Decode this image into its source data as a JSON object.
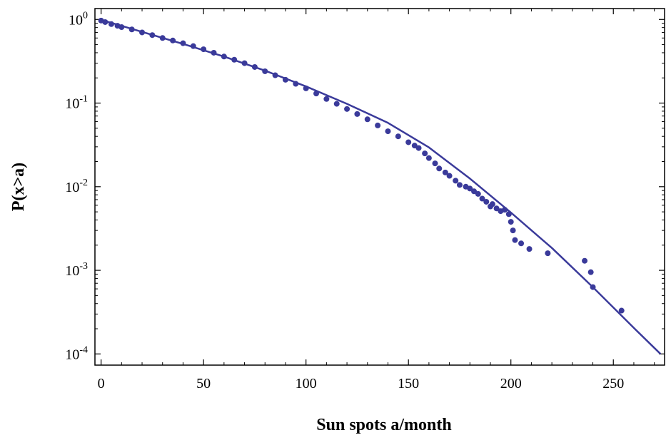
{
  "chart_data": {
    "type": "scatter",
    "title": "",
    "xlabel": "Sun spots a/month",
    "ylabel": "P(x>a)",
    "xlim": [
      -3,
      275
    ],
    "ylim": [
      7.35e-05,
      1.35
    ],
    "yscale": "log",
    "grid": false,
    "legend": "none",
    "x_ticks": [
      0,
      50,
      100,
      150,
      200,
      250
    ],
    "x_tick_labels": [
      "0",
      "50",
      "100",
      "150",
      "200",
      "250"
    ],
    "y_ticks": [
      1,
      0.1,
      0.01,
      0.001,
      0.0001
    ],
    "y_tick_labels": [
      {
        "base": "10",
        "exp": "0"
      },
      {
        "base": "10",
        "exp": "-1"
      },
      {
        "base": "10",
        "exp": "-2"
      },
      {
        "base": "10",
        "exp": "-3"
      },
      {
        "base": "10",
        "exp": "-4"
      }
    ],
    "series": [
      {
        "kind": "points",
        "color": "#3a3a9a",
        "x": [
          0,
          2,
          5,
          8,
          10,
          15,
          20,
          25,
          30,
          35,
          40,
          45,
          50,
          55,
          60,
          65,
          70,
          75,
          80,
          85,
          90,
          95,
          100,
          105,
          110,
          115,
          120,
          125,
          130,
          135,
          140,
          145,
          150,
          153,
          155,
          158,
          160,
          163,
          165,
          168,
          170,
          173,
          175,
          178,
          180,
          182,
          184,
          186,
          188,
          190,
          191,
          193,
          195,
          197,
          199,
          200,
          201,
          202,
          205,
          209,
          218,
          236,
          239,
          240,
          254
        ],
        "y": [
          0.97,
          0.93,
          0.88,
          0.84,
          0.81,
          0.76,
          0.7,
          0.65,
          0.6,
          0.56,
          0.52,
          0.48,
          0.44,
          0.4,
          0.36,
          0.33,
          0.3,
          0.27,
          0.24,
          0.215,
          0.19,
          0.17,
          0.15,
          0.13,
          0.112,
          0.098,
          0.085,
          0.074,
          0.064,
          0.054,
          0.046,
          0.04,
          0.034,
          0.031,
          0.029,
          0.025,
          0.022,
          0.019,
          0.0165,
          0.0148,
          0.0135,
          0.0118,
          0.0105,
          0.01,
          0.0095,
          0.0088,
          0.0082,
          0.0072,
          0.0066,
          0.0058,
          0.0062,
          0.0055,
          0.0051,
          0.0053,
          0.0047,
          0.0038,
          0.003,
          0.0023,
          0.0021,
          0.0018,
          0.0016,
          0.0013,
          0.00095,
          0.00063,
          0.00033
        ]
      },
      {
        "kind": "line",
        "color": "#3a3a9a",
        "x": [
          0,
          20,
          40,
          60,
          80,
          100,
          120,
          140,
          160,
          180,
          200,
          220,
          240,
          260,
          273
        ],
        "y": [
          0.99,
          0.71,
          0.51,
          0.36,
          0.244,
          0.158,
          0.098,
          0.058,
          0.0295,
          0.0125,
          0.0049,
          0.00185,
          0.00063,
          0.000205,
          0.0001
        ]
      }
    ]
  }
}
